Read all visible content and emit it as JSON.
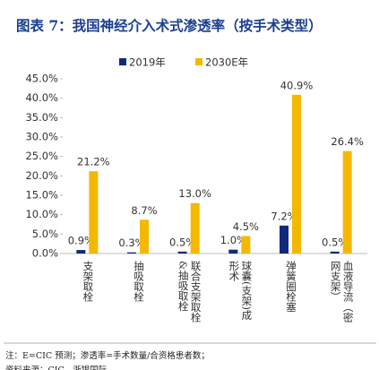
{
  "title": "图表 7：我国神经介入术式渗透率（按手术类型）",
  "chart_data": {
    "type": "bar",
    "categories": [
      "支架取栓",
      "抽吸取栓",
      "联合支架取栓&抽吸取栓",
      "球囊(支架)成形术",
      "弹簧圈栓塞",
      "血液导流（密网支架）"
    ],
    "series": [
      {
        "name": "2019年",
        "color": "#0f2a78",
        "values": [
          0.9,
          0.3,
          0.5,
          1.0,
          7.2,
          0.5
        ],
        "value_labels": [
          "0.9%",
          "0.3%",
          "0.5%",
          "1.0%",
          "7.2%",
          "0.5%"
        ]
      },
      {
        "name": "2030E年",
        "color": "#f5b800",
        "values": [
          21.2,
          8.7,
          13.0,
          4.5,
          40.9,
          26.4
        ],
        "value_labels": [
          "21.2%",
          "8.7%",
          "13.0%",
          "4.5%",
          "40.9%",
          "26.4%"
        ]
      }
    ],
    "ylim": [
      0,
      45
    ],
    "yticks": [
      {
        "value": 0,
        "label": "0.0%"
      },
      {
        "value": 5,
        "label": "5.0%"
      },
      {
        "value": 10,
        "label": "10.0%"
      },
      {
        "value": 15,
        "label": "15.0%"
      },
      {
        "value": 20,
        "label": "20.0%"
      },
      {
        "value": 25,
        "label": "25.0%"
      },
      {
        "value": 30,
        "label": "30.0%"
      },
      {
        "value": 35,
        "label": "35.0%"
      },
      {
        "value": 40,
        "label": "40.0%"
      },
      {
        "value": 45,
        "label": "45.0%"
      }
    ],
    "grid": false
  },
  "footer": {
    "note": "注：E=CIC 预测；渗透率=手术数量/合资格患者数；",
    "source": "资料来源：CIC，浙银国际"
  }
}
